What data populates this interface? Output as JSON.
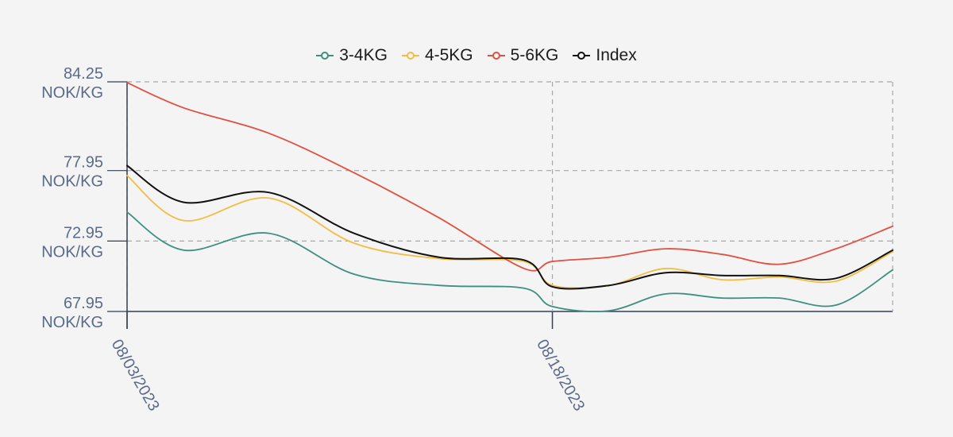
{
  "chart_data": {
    "type": "line",
    "title": "",
    "xlabel": "",
    "ylabel": "",
    "legend_position": "top-center",
    "grid": true,
    "ylim": [
      67.95,
      84.25
    ],
    "xlim": [
      "08/03/2023",
      "08/30/2023"
    ],
    "y_ticks": [
      {
        "value": 84.25,
        "label_line1": "84.25",
        "label_line2": "NOK/KG"
      },
      {
        "value": 77.95,
        "label_line1": "77.95",
        "label_line2": "NOK/KG"
      },
      {
        "value": 72.95,
        "label_line1": "72.95",
        "label_line2": "NOK/KG"
      },
      {
        "value": 67.95,
        "label_line1": "67.95",
        "label_line2": "NOK/KG"
      }
    ],
    "x_ticks": [
      {
        "value": "08/03/2023",
        "label": "08/03/2023"
      },
      {
        "value": "08/18/2023",
        "label": "08/18/2023"
      }
    ],
    "x": [
      "08/03/2023",
      "08/05/2023",
      "08/08/2023",
      "08/11/2023",
      "08/14/2023",
      "08/17/2023",
      "08/18/2023",
      "08/20/2023",
      "08/22/2023",
      "08/24/2023",
      "08/26/2023",
      "08/28/2023",
      "08/30/2023"
    ],
    "series": [
      {
        "name": "3-4KG",
        "color": "#3d8f80",
        "values": [
          75.0,
          72.3,
          73.5,
          70.6,
          69.8,
          69.6,
          68.3,
          68.0,
          69.2,
          68.9,
          68.9,
          68.4,
          70.9
        ]
      },
      {
        "name": "4-5KG",
        "color": "#f2bd42",
        "values": [
          77.6,
          74.4,
          76.0,
          72.8,
          71.7,
          71.5,
          69.8,
          69.8,
          71.0,
          70.2,
          70.4,
          70.1,
          72.2
        ]
      },
      {
        "name": "5-6KG",
        "color": "#e05141",
        "values": [
          84.2,
          82.4,
          80.6,
          77.8,
          74.6,
          71.0,
          71.5,
          71.8,
          72.4,
          72.0,
          71.3,
          72.4,
          74.0
        ]
      },
      {
        "name": "Index",
        "color": "#111111",
        "values": [
          78.3,
          75.7,
          76.4,
          73.5,
          71.8,
          71.6,
          69.7,
          69.8,
          70.7,
          70.5,
          70.5,
          70.3,
          72.3
        ]
      }
    ]
  }
}
